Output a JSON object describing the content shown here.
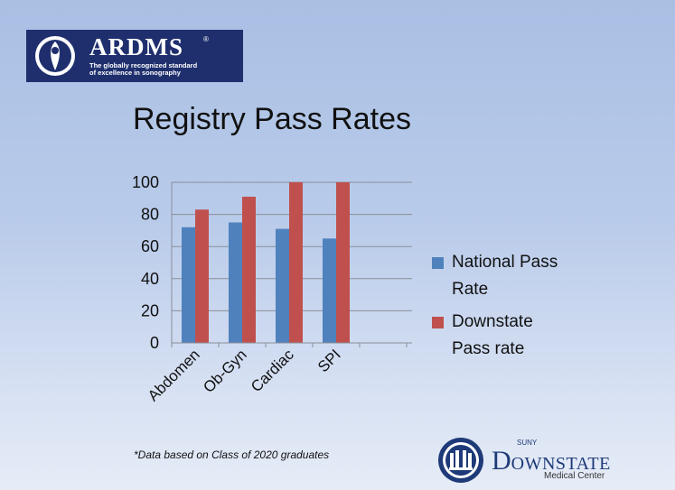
{
  "ardms_logo": {
    "name": "ARDMS",
    "registered_mark": "®",
    "tagline_line1": "The globally recognized standard",
    "tagline_line2": "of excellence in sonography"
  },
  "title": "Registry Pass Rates",
  "chart_data": {
    "type": "bar",
    "categories": [
      "Abdomen",
      "Ob-Gyn",
      "Cardiac",
      "SPI"
    ],
    "series": [
      {
        "name": "National Pass Rate",
        "color": "#4f81bd",
        "values": [
          72,
          75,
          71,
          65
        ]
      },
      {
        "name": "Downstate Pass rate",
        "color": "#c0504d",
        "values": [
          83,
          91,
          100,
          100
        ]
      }
    ],
    "ylim": [
      0,
      100
    ],
    "yticks": [
      0,
      20,
      40,
      60,
      80,
      100
    ],
    "grid": true,
    "legend_position": "right"
  },
  "legend": [
    {
      "line1": "National Pass",
      "line2": "Rate",
      "color": "#4f81bd"
    },
    {
      "line1": "Downstate",
      "line2": "Pass rate",
      "color": "#c0504d"
    }
  ],
  "footnote": "*Data based on Class of 2020 graduates",
  "suny_logo": {
    "small_text": "SUNY",
    "name_initial": "D",
    "name_rest": "OWNSTATE",
    "subtitle": "Medical Center"
  }
}
